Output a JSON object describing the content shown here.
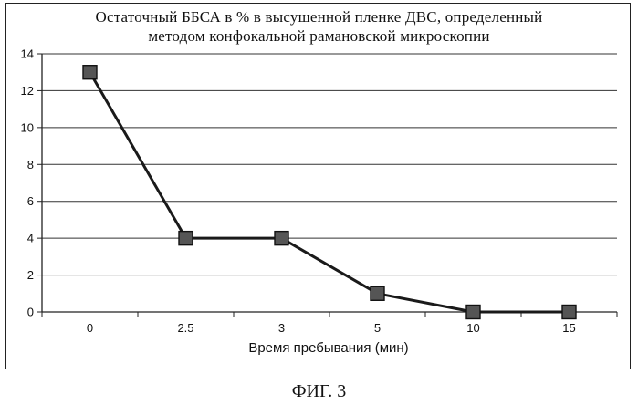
{
  "chart_data": {
    "type": "line",
    "title_lines": [
      "Остаточный ББСА в % в высушенной пленке ДВС, определенный",
      "методом конфокальной рамановской микроскопии"
    ],
    "xlabel": "Время пребывания (мин)",
    "ylabel": "",
    "categories": [
      "0",
      "2.5",
      "3",
      "5",
      "10",
      "15"
    ],
    "series": [
      {
        "values": [
          13,
          4,
          4,
          1,
          0,
          0
        ]
      }
    ],
    "ylim": [
      0,
      14
    ],
    "yticks": [
      0,
      2,
      4,
      6,
      8,
      10,
      12,
      14
    ],
    "grid": "horizontal",
    "marker": "square",
    "line_color": "#1a1a1a",
    "marker_color": "#555555"
  },
  "caption": "ФИГ. 3"
}
